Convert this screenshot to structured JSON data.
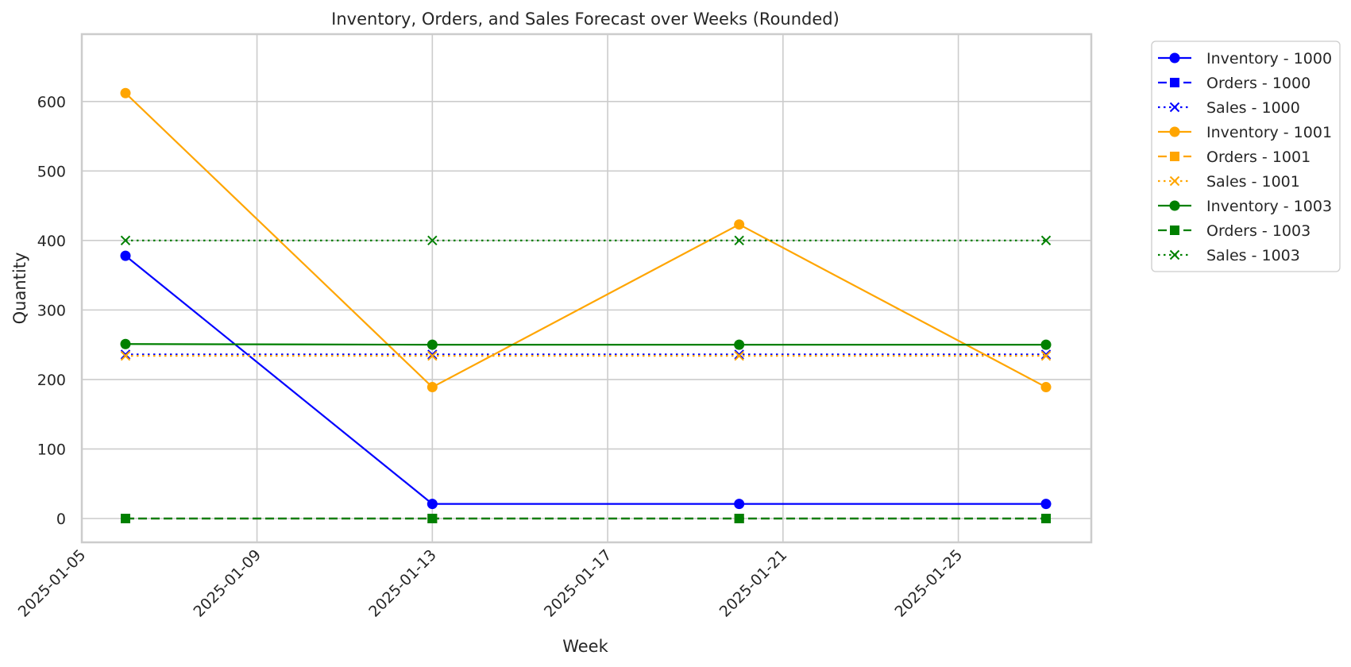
{
  "chart_data": {
    "type": "line",
    "title": "Inventory, Orders, and Sales Forecast over Weeks (Rounded)",
    "xlabel": "Week",
    "ylabel": "Quantity",
    "x": [
      "2025-01-06",
      "2025-01-13",
      "2025-01-20",
      "2025-01-27"
    ],
    "xlim": [
      "2025-01-05",
      "2025-01-28"
    ],
    "xticks": [
      "2025-01-05",
      "2025-01-09",
      "2025-01-13",
      "2025-01-17",
      "2025-01-21",
      "2025-01-25"
    ],
    "ylim": [
      -30,
      640
    ],
    "yticks": [
      0,
      100,
      200,
      300,
      400,
      500,
      600
    ],
    "grid": true,
    "legend_position": "outside-top-right",
    "series": [
      {
        "name": "Inventory - 1000",
        "values": [
          378,
          21,
          21,
          21
        ],
        "color": "#0000ff",
        "linestyle": "solid",
        "marker": "circle"
      },
      {
        "name": "Orders - 1000",
        "values": [
          0,
          0,
          0,
          0
        ],
        "color": "#0000ff",
        "linestyle": "dashed",
        "marker": "square"
      },
      {
        "name": "Sales - 1000",
        "values": [
          236,
          236,
          236,
          236
        ],
        "color": "#0000ff",
        "linestyle": "dotted",
        "marker": "x"
      },
      {
        "name": "Inventory - 1001",
        "values": [
          612,
          189,
          423,
          189
        ],
        "color": "#ffa500",
        "linestyle": "solid",
        "marker": "circle"
      },
      {
        "name": "Orders - 1001",
        "values": [
          0,
          0,
          0,
          0
        ],
        "color": "#ffa500",
        "linestyle": "dashed",
        "marker": "square"
      },
      {
        "name": "Sales - 1001",
        "values": [
          234,
          234,
          234,
          234
        ],
        "color": "#ffa500",
        "linestyle": "dotted",
        "marker": "x"
      },
      {
        "name": "Inventory - 1003",
        "values": [
          251,
          250,
          250,
          250
        ],
        "color": "#008000",
        "linestyle": "solid",
        "marker": "circle"
      },
      {
        "name": "Orders - 1003",
        "values": [
          0,
          0,
          0,
          0
        ],
        "color": "#008000",
        "linestyle": "dashed",
        "marker": "square"
      },
      {
        "name": "Sales - 1003",
        "values": [
          400,
          400,
          400,
          400
        ],
        "color": "#008000",
        "linestyle": "dotted",
        "marker": "x"
      }
    ]
  }
}
